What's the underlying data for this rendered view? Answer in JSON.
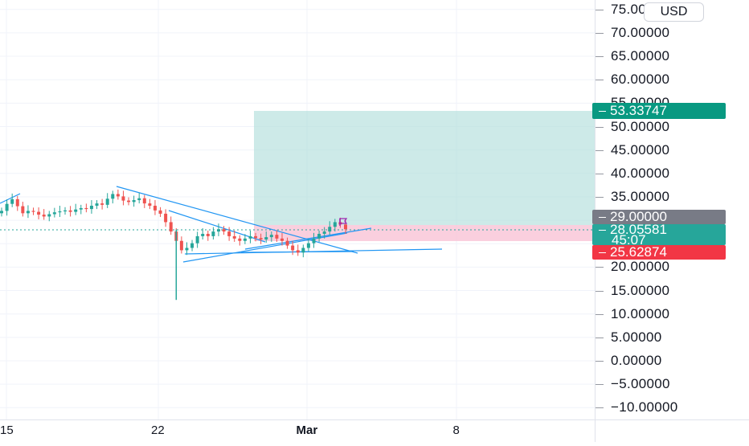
{
  "currency_button": "USD",
  "price_axis": {
    "labels": [
      {
        "value": 75,
        "text": "75.00000"
      },
      {
        "value": 70,
        "text": "70.00000"
      },
      {
        "value": 65,
        "text": "65.00000"
      },
      {
        "value": 60,
        "text": "60.00000"
      },
      {
        "value": 55,
        "text": "55.00000"
      },
      {
        "value": 50,
        "text": "50.00000"
      },
      {
        "value": 45,
        "text": "45.00000"
      },
      {
        "value": 40,
        "text": "40.00000"
      },
      {
        "value": 35,
        "text": "35.00000"
      },
      {
        "value": 30,
        "text": "30.00000"
      },
      {
        "value": 25,
        "text": "25.00000"
      },
      {
        "value": 20,
        "text": "20.00000"
      },
      {
        "value": 15,
        "text": "15.00000"
      },
      {
        "value": 10,
        "text": "10.00000"
      },
      {
        "value": 5,
        "text": "5.00000"
      },
      {
        "value": 0,
        "text": "0.00000"
      },
      {
        "value": -5,
        "text": "−5.00000"
      },
      {
        "value": -10,
        "text": "−10.00000"
      }
    ]
  },
  "time_axis": {
    "labels": [
      {
        "text": "15",
        "bold": false
      },
      {
        "text": "22",
        "bold": false
      },
      {
        "text": "Mar",
        "bold": true
      },
      {
        "text": "8",
        "bold": false
      }
    ]
  },
  "tags": {
    "target": {
      "text": "53.33747",
      "color": "#089981"
    },
    "entry": {
      "text": "29.00000",
      "color": "#787b86"
    },
    "current": {
      "text": "28.05581",
      "countdown": "45:07",
      "color": "#26a69a"
    },
    "stop": {
      "text": "25.62874",
      "color": "#f23645"
    }
  },
  "colors": {
    "up": "#26a69a",
    "down": "#ef5350",
    "trendline": "#2196f3",
    "profit_zone": "#b2dfdb",
    "loss_zone": "#f8bbd0"
  },
  "chart_data": {
    "type": "candlestick",
    "instrument_currency": "USD",
    "ylim": [
      -13,
      77
    ],
    "x_tick_labels": [
      "15",
      "22",
      "Mar",
      "8"
    ],
    "long_position": {
      "target": 53.33747,
      "entry": 29.0,
      "stop": 25.62874
    },
    "last_price": 28.05581,
    "bar_countdown": "45:07",
    "min_wick_low": 13.0,
    "approx_closes": [
      32,
      33.5,
      34.5,
      33,
      31.5,
      32,
      31.8,
      31.2,
      30.8,
      31.3,
      31.7,
      31.9,
      32.1,
      31.8,
      32.3,
      32.6,
      32.4,
      33.1,
      33.6,
      33.3,
      34.6,
      35.6,
      35.1,
      34.2,
      33.9,
      34.3,
      34.7,
      33.6,
      33.1,
      32.1,
      31.4,
      29.6,
      27.6,
      25.6,
      23.6,
      24.1,
      25.1,
      26.6,
      27.1,
      26.6,
      27.6,
      28.1,
      27.6,
      26.6,
      26.1,
      25.6,
      26.1,
      26.6,
      26.2,
      25.9,
      26.4,
      26.9,
      26.1,
      25.6,
      24.6,
      23.6,
      23.1,
      24.1,
      25.1,
      26.1,
      27.1,
      27.6,
      28.6,
      29.6,
      29.1,
      28.1
    ]
  }
}
